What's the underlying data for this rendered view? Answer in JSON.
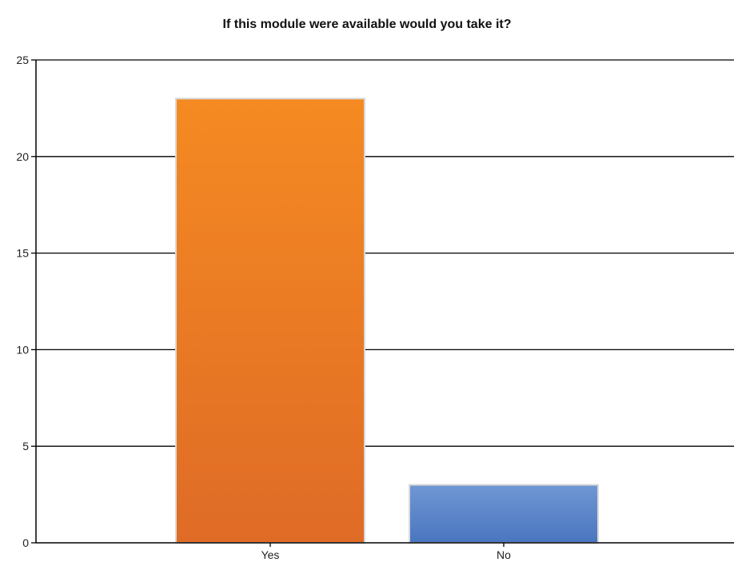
{
  "chart_data": {
    "type": "bar",
    "title": "If this module were available would you take it?",
    "categories": [
      "Yes",
      "No"
    ],
    "values": [
      23,
      3
    ],
    "ylim": [
      0,
      25
    ],
    "yticks": [
      0,
      5,
      10,
      15,
      20,
      25
    ],
    "grid": true,
    "xlabel": "",
    "ylabel": "",
    "colors": {
      "Yes": [
        "#f58a22",
        "#df6b26"
      ],
      "No": [
        "#6f97d3",
        "#4a76bf"
      ]
    }
  }
}
